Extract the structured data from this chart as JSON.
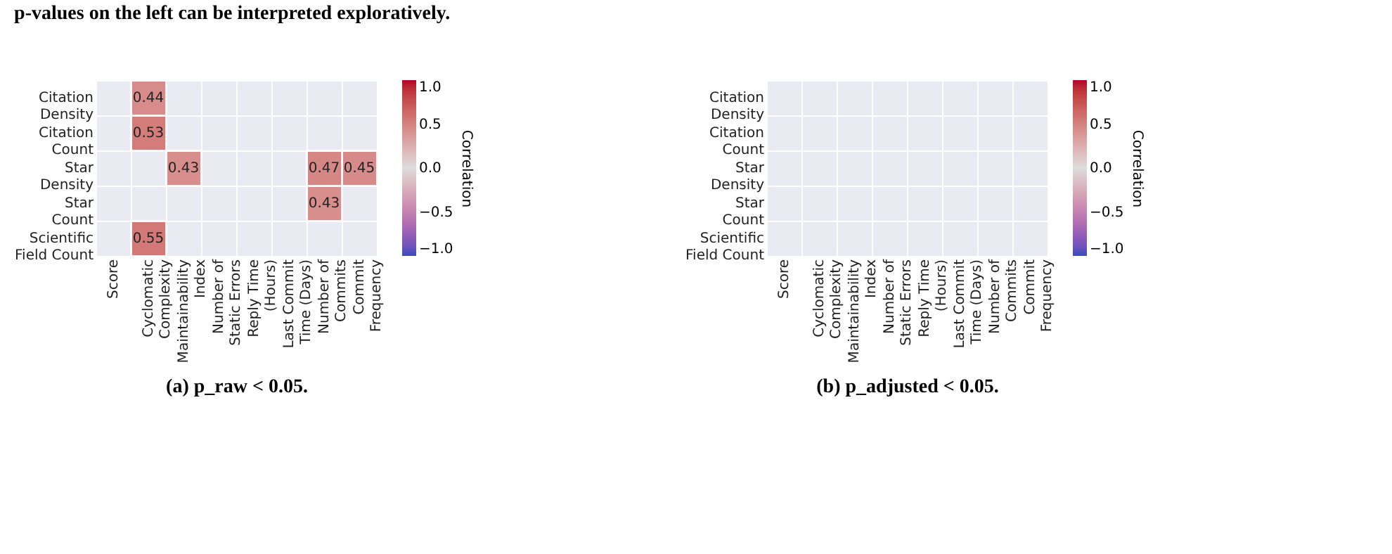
{
  "chart_data": [
    {
      "type": "heatmap",
      "xlabel": "(a) p_raw < 0.05.",
      "clabel": "Correlation",
      "annotations": [
        "p-values on the left can be interpreted exploratively."
      ],
      "categories": [
        "Score",
        "Cyclomatic\nComplexity",
        "Maintainability\nIndex",
        "Number of\nStatic Errors",
        "Reply Time\n(Hours)",
        "Last Commit\nTime (Days)",
        "Number of\nCommits",
        "Commit\nFrequency"
      ],
      "y_categories": [
        "Citation\nDensity",
        "Citation\nCount",
        "Star\nDensity",
        "Star\nCount",
        "Scientific\nField Count"
      ],
      "cells": [
        [
          null,
          0.44,
          null,
          null,
          null,
          null,
          null,
          null
        ],
        [
          null,
          0.53,
          null,
          null,
          null,
          null,
          null,
          null
        ],
        [
          null,
          null,
          0.43,
          null,
          null,
          null,
          0.47,
          0.45
        ],
        [
          null,
          null,
          null,
          null,
          null,
          null,
          0.43,
          null
        ],
        [
          null,
          0.55,
          null,
          null,
          null,
          null,
          null,
          null
        ]
      ],
      "data_labels": true,
      "grid": true,
      "clim": [
        -1,
        1
      ],
      "cticks": [
        {
          "value": -1,
          "label": "−1.0"
        },
        {
          "value": -0.5,
          "label": "−0.5"
        },
        {
          "value": 0,
          "label": "0.0"
        },
        {
          "value": 0.5,
          "label": "0.5"
        },
        {
          "value": 1,
          "label": "1.0"
        }
      ]
    },
    {
      "type": "heatmap",
      "xlabel": "(b) p_adjusted < 0.05.",
      "clabel": "Correlation",
      "categories": [
        "Score",
        "Cyclomatic\nComplexity",
        "Maintainability\nIndex",
        "Number of\nStatic Errors",
        "Reply Time\n(Hours)",
        "Last Commit\nTime (Days)",
        "Number of\nCommits",
        "Commit\nFrequency"
      ],
      "y_categories": [
        "Citation\nDensity",
        "Citation\nCount",
        "Star\nDensity",
        "Star\nCount",
        "Scientific\nField Count"
      ],
      "cells": [
        [
          null,
          null,
          null,
          null,
          null,
          null,
          null,
          null
        ],
        [
          null,
          null,
          null,
          null,
          null,
          null,
          null,
          null
        ],
        [
          null,
          null,
          null,
          null,
          null,
          null,
          null,
          null
        ],
        [
          null,
          null,
          null,
          null,
          null,
          null,
          null,
          null
        ],
        [
          null,
          null,
          null,
          null,
          null,
          null,
          null,
          null
        ]
      ],
      "grid": true,
      "clim": [
        -1,
        1
      ],
      "cticks": [
        {
          "value": -1,
          "label": "−1.0"
        },
        {
          "value": -0.5,
          "label": "−0.5"
        },
        {
          "value": 0,
          "label": "0.0"
        },
        {
          "value": 0.5,
          "label": "0.5"
        },
        {
          "value": 1,
          "label": "1.0"
        }
      ]
    }
  ]
}
